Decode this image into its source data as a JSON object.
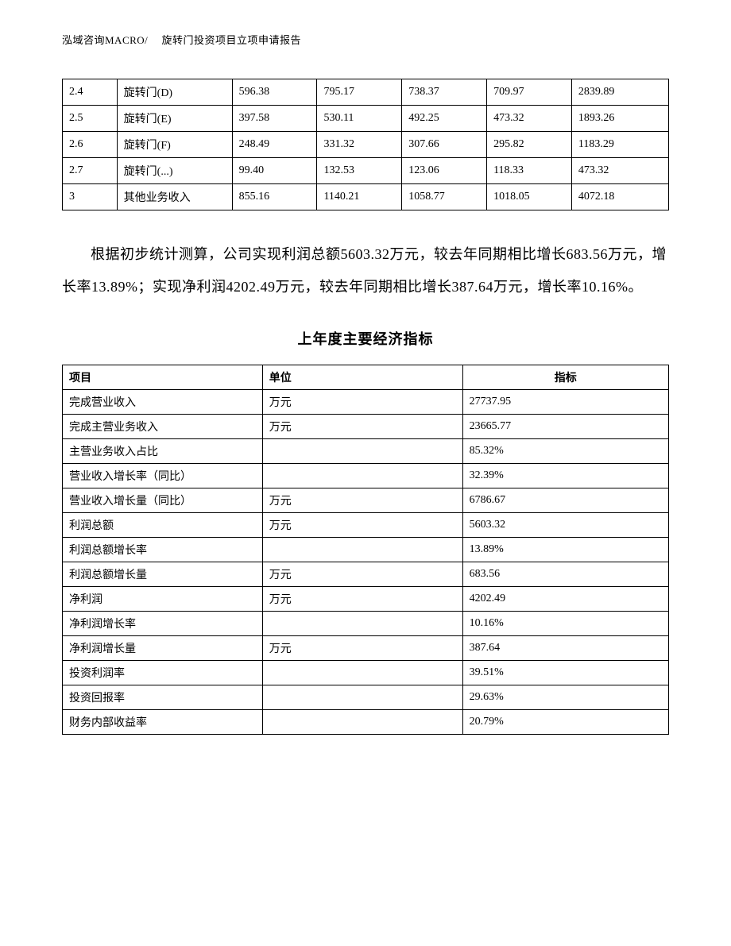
{
  "header_text": "泓域咨询MACRO/　 旋转门投资项目立项申请报告",
  "table1": {
    "columns_count": 7,
    "col_widths_percent": [
      9,
      19,
      14,
      14,
      14,
      14,
      16
    ],
    "border_color": "#000000",
    "cell_fontsize": 14,
    "rows": [
      [
        "2.4",
        "旋转门(D)",
        "596.38",
        "795.17",
        "738.37",
        "709.97",
        "2839.89"
      ],
      [
        "2.5",
        "旋转门(E)",
        "397.58",
        "530.11",
        "492.25",
        "473.32",
        "1893.26"
      ],
      [
        "2.6",
        "旋转门(F)",
        "248.49",
        "331.32",
        "307.66",
        "295.82",
        "1183.29"
      ],
      [
        "2.7",
        "旋转门(...)",
        "99.40",
        "132.53",
        "123.06",
        "118.33",
        "473.32"
      ],
      [
        "3",
        "其他业务收入",
        "855.16",
        "1140.21",
        "1058.77",
        "1018.05",
        "4072.18"
      ]
    ]
  },
  "paragraph_text": "根据初步统计测算，公司实现利润总额5603.32万元，较去年同期相比增长683.56万元，增长率13.89%；实现净利润4202.49万元，较去年同期相比增长387.64万元，增长率10.16%。",
  "section_title": "上年度主要经济指标",
  "table2": {
    "border_color": "#000000",
    "cell_fontsize": 14,
    "header_fontweight": "bold",
    "headers": [
      "项目",
      "单位",
      "指标"
    ],
    "col_widths_percent": [
      33,
      33,
      34
    ],
    "rows": [
      [
        "完成营业收入",
        "万元",
        "27737.95"
      ],
      [
        "完成主营业务收入",
        "万元",
        "23665.77"
      ],
      [
        "主营业务收入占比",
        "",
        "85.32%"
      ],
      [
        "营业收入增长率（同比）",
        "",
        "32.39%"
      ],
      [
        "营业收入增长量（同比）",
        "万元",
        "6786.67"
      ],
      [
        "利润总额",
        "万元",
        "5603.32"
      ],
      [
        "利润总额增长率",
        "",
        "13.89%"
      ],
      [
        "利润总额增长量",
        "万元",
        "683.56"
      ],
      [
        "净利润",
        "万元",
        "4202.49"
      ],
      [
        "净利润增长率",
        "",
        "10.16%"
      ],
      [
        "净利润增长量",
        "万元",
        "387.64"
      ],
      [
        "投资利润率",
        "",
        "39.51%"
      ],
      [
        "投资回报率",
        "",
        "29.63%"
      ],
      [
        "财务内部收益率",
        "",
        "20.79%"
      ]
    ]
  },
  "style": {
    "background_color": "#ffffff",
    "text_color": "#000000",
    "body_fontsize": 14,
    "paragraph_fontsize": 18,
    "paragraph_lineheight": 2.3,
    "section_title_fontsize": 18,
    "header_fontsize": 13
  }
}
